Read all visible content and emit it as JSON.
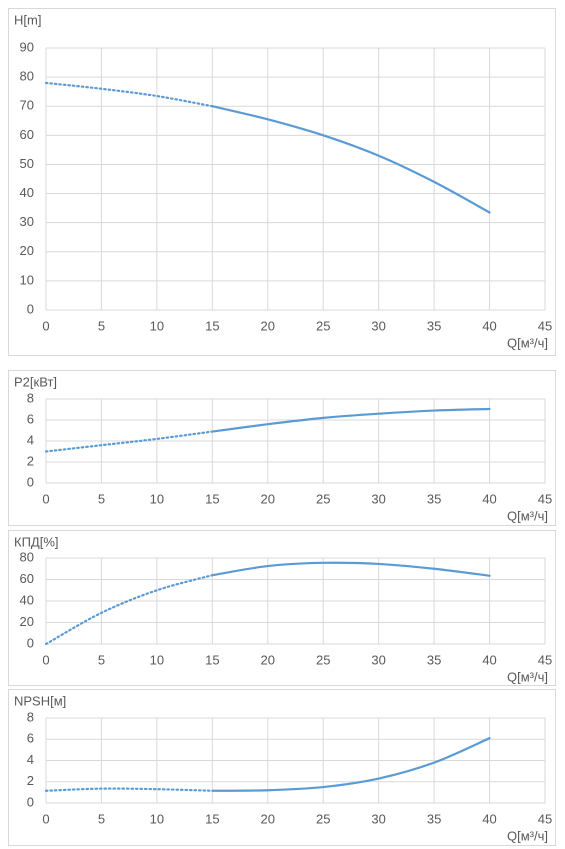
{
  "chart_data": [
    {
      "type": "line",
      "ylabel": "H[m]",
      "xlabel": "Q[м³/ч]",
      "x": [
        0,
        5,
        10,
        15,
        20,
        25,
        30,
        35,
        40
      ],
      "series": [
        {
          "color": "#5b9bd5",
          "linestyle": "dotted",
          "values": [
            78,
            76,
            73.5,
            70,
            null,
            null,
            null,
            null,
            null
          ]
        },
        {
          "color": "#5b9bd5",
          "linestyle": "solid",
          "values": [
            null,
            null,
            null,
            70,
            65.5,
            60,
            53,
            44,
            33.5
          ]
        }
      ],
      "xlim": [
        0,
        45
      ],
      "xticks": [
        0,
        5,
        10,
        15,
        20,
        25,
        30,
        35,
        40,
        45
      ],
      "ylim": [
        0,
        90
      ],
      "yticks": [
        0,
        10,
        20,
        30,
        40,
        50,
        60,
        70,
        80,
        90
      ],
      "grid": true
    },
    {
      "type": "line",
      "ylabel": "P2[кВт]",
      "xlabel": "Q[м³/ч]",
      "x": [
        0,
        5,
        10,
        15,
        20,
        25,
        30,
        35,
        40
      ],
      "series": [
        {
          "color": "#5b9bd5",
          "linestyle": "dotted",
          "values": [
            3,
            3.6,
            4.2,
            4.9,
            null,
            null,
            null,
            null,
            null
          ]
        },
        {
          "color": "#5b9bd5",
          "linestyle": "solid",
          "values": [
            null,
            null,
            null,
            4.9,
            5.6,
            6.2,
            6.6,
            6.9,
            7.05
          ]
        }
      ],
      "xlim": [
        0,
        45
      ],
      "xticks": [
        0,
        5,
        10,
        15,
        20,
        25,
        30,
        35,
        40,
        45
      ],
      "ylim": [
        0,
        8
      ],
      "yticks": [
        0,
        2,
        4,
        6,
        8
      ],
      "grid": true
    },
    {
      "type": "line",
      "ylabel": "КПД[%]",
      "xlabel": "Q[м³/ч]",
      "x": [
        0,
        5,
        10,
        15,
        20,
        25,
        30,
        35,
        40
      ],
      "series": [
        {
          "color": "#5b9bd5",
          "linestyle": "dotted",
          "values": [
            0,
            29,
            50,
            64,
            null,
            null,
            null,
            null,
            null
          ]
        },
        {
          "color": "#5b9bd5",
          "linestyle": "solid",
          "values": [
            null,
            null,
            null,
            64,
            72.5,
            75.5,
            74.5,
            70,
            63.5
          ]
        }
      ],
      "xlim": [
        0,
        45
      ],
      "xticks": [
        0,
        5,
        10,
        15,
        20,
        25,
        30,
        35,
        40,
        45
      ],
      "ylim": [
        0,
        80
      ],
      "yticks": [
        0,
        20,
        40,
        60,
        80
      ],
      "grid": true
    },
    {
      "type": "line",
      "ylabel": "NPSH[м]",
      "xlabel": "Q[м³/ч]",
      "x": [
        0,
        5,
        10,
        15,
        20,
        25,
        30,
        35,
        40
      ],
      "series": [
        {
          "color": "#5b9bd5",
          "linestyle": "dotted",
          "values": [
            1.15,
            1.35,
            1.3,
            1.15,
            null,
            null,
            null,
            null,
            null
          ]
        },
        {
          "color": "#5b9bd5",
          "linestyle": "solid",
          "values": [
            null,
            null,
            null,
            1.15,
            1.2,
            1.5,
            2.3,
            3.8,
            6.1
          ]
        }
      ],
      "xlim": [
        0,
        45
      ],
      "xticks": [
        0,
        5,
        10,
        15,
        20,
        25,
        30,
        35,
        40,
        45
      ],
      "ylim": [
        0,
        8
      ],
      "yticks": [
        0,
        2,
        4,
        6,
        8
      ],
      "grid": true
    }
  ]
}
